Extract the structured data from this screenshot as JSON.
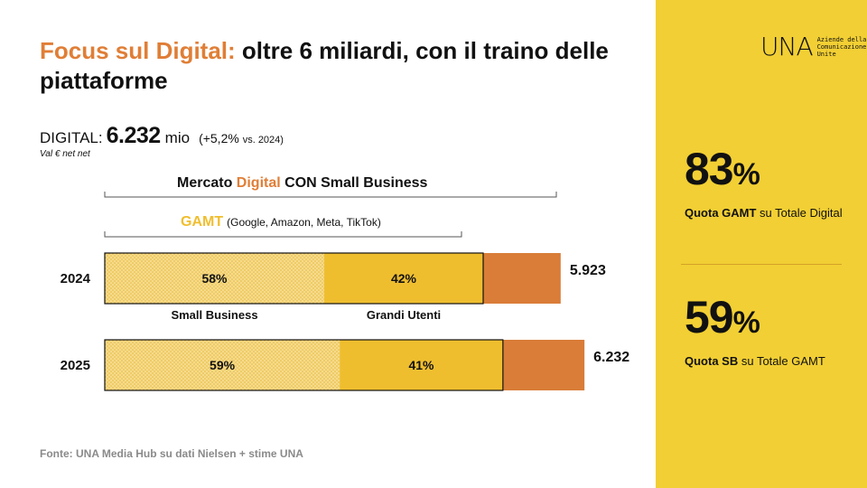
{
  "title": {
    "accent": "Focus sul Digital:",
    "rest": " oltre 6 miliardi, con il traino delle piattaforme"
  },
  "digital": {
    "label": "DIGITAL:",
    "value": "6.232",
    "unit": "mio",
    "delta": "(+5,2%",
    "delta_note": "vs. 2024)",
    "note": "Val € net net"
  },
  "brackets": {
    "market_pre": "Mercato ",
    "market_hl": "Digital",
    "market_post": " CON Small Business",
    "gamt_hl": "GAMT",
    "gamt_sub": "(Google, Amazon, Meta, TikTok)"
  },
  "chart_data": {
    "type": "bar",
    "orientation": "horizontal",
    "stacked": true,
    "categories": [
      "2024",
      "2025"
    ],
    "totals": [
      5923,
      6232
    ],
    "total_labels": [
      "5.923",
      "6.232"
    ],
    "gamt_share_of_total": [
      0.83,
      0.83
    ],
    "series": [
      {
        "name": "Small Business",
        "values_pct_of_gamt": [
          58,
          59
        ],
        "labels": [
          "58%",
          "59%"
        ]
      },
      {
        "name": "Grandi Utenti",
        "values_pct_of_gamt": [
          42,
          41
        ],
        "labels": [
          "42%",
          "41%"
        ]
      }
    ],
    "series_labels": [
      "Small Business",
      "Grandi Utenti"
    ],
    "colors": {
      "small_business": "#F2D27A",
      "grandi_utenti": "#EFBE2F",
      "other_digital": "#D97D38"
    }
  },
  "source": "Fonte: UNA Media Hub su dati Nielsen + stime UNA",
  "logo": {
    "mark": "UNA",
    "text": "Aziende della Comunicazione Unite"
  },
  "kpis": [
    {
      "value": "83",
      "pct": "%",
      "bold": "Quota GAMT",
      "rest": " su Totale Digital"
    },
    {
      "value": "59",
      "pct": "%",
      "bold": "Quota SB",
      "rest": " su Totale GAMT"
    }
  ]
}
